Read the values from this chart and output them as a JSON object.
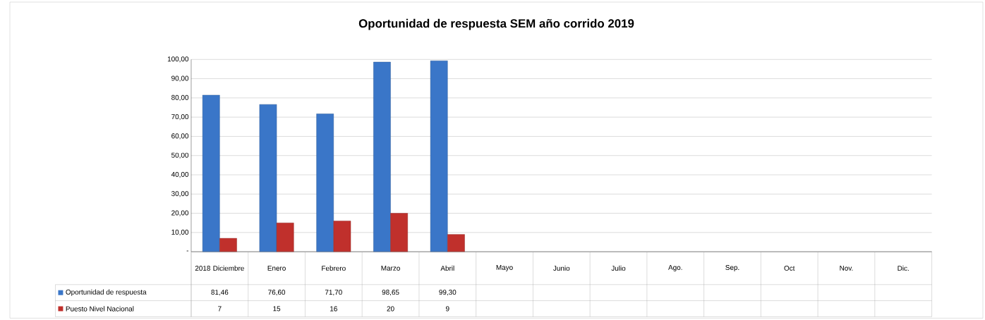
{
  "chart_data": {
    "type": "bar",
    "title": "Oportunidad de respuesta SEM año corrido 2019",
    "categories": [
      "2018 Diciembre",
      "Enero",
      "Febrero",
      "Marzo",
      "Abril",
      "Mayo",
      "Junio",
      "Julio",
      "Ago.",
      "Sep.",
      "Oct",
      "Nov.",
      "Dic."
    ],
    "series": [
      {
        "name": "Oportunidad de respuesta",
        "color": "#3a76c8",
        "values": [
          81.46,
          76.6,
          71.7,
          98.65,
          99.3,
          null,
          null,
          null,
          null,
          null,
          null,
          null,
          null
        ],
        "value_labels": [
          "81,46",
          "76,60",
          "71,70",
          "98,65",
          "99,30",
          null,
          null,
          null,
          null,
          null,
          null,
          null,
          null
        ]
      },
      {
        "name": "Puesto Nivel Nacional",
        "color": "#c0302c",
        "values": [
          7,
          15,
          16,
          20,
          9,
          null,
          null,
          null,
          null,
          null,
          null,
          null,
          null
        ],
        "value_labels": [
          "7",
          "15",
          "16",
          "20",
          "9",
          null,
          null,
          null,
          null,
          null,
          null,
          null,
          null
        ]
      }
    ],
    "ylim": [
      0,
      100
    ],
    "yticks": [
      {
        "value": 0,
        "label": "-"
      },
      {
        "value": 10,
        "label": "10,00"
      },
      {
        "value": 20,
        "label": "20,00"
      },
      {
        "value": 30,
        "label": "30,00"
      },
      {
        "value": 40,
        "label": "40,00"
      },
      {
        "value": 50,
        "label": "50,00"
      },
      {
        "value": 60,
        "label": "60,00"
      },
      {
        "value": 70,
        "label": "70,00"
      },
      {
        "value": 80,
        "label": "80,00"
      },
      {
        "value": 90,
        "label": "90,00"
      },
      {
        "value": 100,
        "label": "100,00"
      }
    ],
    "grid": "y",
    "legend": "bottom left"
  }
}
